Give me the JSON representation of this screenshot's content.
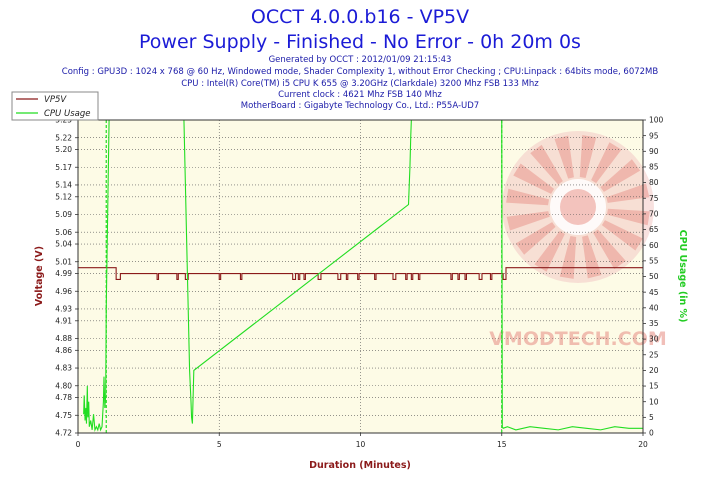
{
  "header": {
    "title_line1": "OCCT 4.0.0.b16 - VP5V",
    "title_line2": "Power Supply - Finished - No Error - 0h 20m 0s",
    "generated": "Generated by OCCT : 2012/01/09 21:15:43",
    "config": "Config : GPU3D : 1024 x 768 @ 60 Hz, Windowed mode, Shader Complexity 1, without Error Checking ; CPU:Linpack : 64bits mode, 6072MB",
    "cpu": "CPU : Intel(R) Core(TM) i5 CPU K 655 @ 3.20GHz (Clarkdale) 3200 Mhz FSB 133 Mhz",
    "clock": "Current clock : 4621 Mhz FSB 140 Mhz",
    "motherboard": "MotherBoard : Gigabyte Technology Co., Ltd.: P55A-UD7"
  },
  "watermark": {
    "text": "VMODTECH.COM"
  },
  "colors": {
    "vp5v": "#8b1a1a",
    "cpu": "#22dd22",
    "plot_bg": "#fdfbe6",
    "grid": "#555555",
    "title": "#1b1bd6"
  },
  "chart_data": {
    "type": "line",
    "xlabel": "Duration (Minutes)",
    "ylabel_left": "Voltage (V)",
    "ylabel_right": "CPU Usage (in %)",
    "xlim": [
      0,
      20
    ],
    "ylim_left": [
      4.72,
      5.25
    ],
    "ylim_right": [
      0,
      100
    ],
    "x_ticks": [
      0,
      5,
      10,
      15,
      20
    ],
    "y_ticks_left": [
      5.25,
      5.22,
      5.2,
      5.17,
      5.14,
      5.12,
      5.09,
      5.06,
      5.04,
      5.01,
      4.99,
      4.96,
      4.93,
      4.91,
      4.88,
      4.86,
      4.83,
      4.8,
      4.78,
      4.75,
      4.72
    ],
    "y_ticks_right": [
      100,
      95,
      90,
      85,
      80,
      75,
      70,
      65,
      60,
      55,
      50,
      45,
      40,
      35,
      30,
      25,
      20,
      15,
      10,
      5,
      0
    ],
    "y_tick_labels_left": [
      "5.25",
      "5.22",
      "5.20",
      "5.17",
      "5.14",
      "5.12",
      "5.09",
      "5.06",
      "5.04",
      "5.01",
      "4.99",
      "4.96",
      "4.93",
      "4.91",
      "4.88",
      "4.86",
      "4.83",
      "4.80",
      "4.78",
      "4.75",
      "4.72"
    ],
    "grid": true,
    "legend_position": "top-left",
    "vertical_markers": [
      1,
      15
    ],
    "series": [
      {
        "name": "VP5V",
        "axis": "left",
        "color": "#8b1a1a",
        "x": [
          0,
          1.35,
          1.35,
          1.5,
          1.5,
          2.8,
          2.8,
          2.85,
          2.85,
          3.5,
          3.5,
          3.55,
          3.55,
          3.8,
          3.8,
          3.9,
          3.9,
          5.0,
          5.0,
          5.05,
          5.05,
          5.75,
          5.75,
          5.8,
          5.8,
          7.6,
          7.6,
          7.7,
          7.7,
          7.8,
          7.8,
          7.85,
          7.85,
          8.0,
          8.0,
          8.05,
          8.05,
          8.5,
          8.5,
          8.6,
          8.6,
          9.2,
          9.2,
          9.3,
          9.3,
          9.5,
          9.5,
          9.55,
          9.55,
          9.9,
          9.9,
          9.95,
          9.95,
          10.5,
          10.5,
          10.55,
          10.55,
          11.15,
          11.15,
          11.25,
          11.25,
          11.6,
          11.6,
          11.65,
          11.65,
          11.8,
          11.8,
          11.85,
          11.85,
          12.05,
          12.05,
          12.1,
          12.1,
          13.2,
          13.2,
          13.25,
          13.25,
          13.45,
          13.45,
          13.5,
          13.5,
          13.7,
          13.7,
          13.75,
          13.75,
          14.2,
          14.2,
          14.3,
          14.3,
          14.6,
          14.6,
          14.65,
          14.65,
          15.05,
          15.05,
          15.15,
          15.15,
          20
        ],
        "values": [
          5.0,
          5.0,
          4.98,
          4.98,
          4.99,
          4.99,
          4.98,
          4.98,
          4.99,
          4.99,
          4.98,
          4.98,
          4.99,
          4.99,
          4.98,
          4.98,
          4.99,
          4.99,
          4.98,
          4.98,
          4.99,
          4.99,
          4.98,
          4.98,
          4.99,
          4.99,
          4.98,
          4.98,
          4.99,
          4.99,
          4.98,
          4.98,
          4.99,
          4.99,
          4.98,
          4.98,
          4.99,
          4.99,
          4.98,
          4.98,
          4.99,
          4.99,
          4.98,
          4.98,
          4.99,
          4.99,
          4.98,
          4.98,
          4.99,
          4.99,
          4.98,
          4.98,
          4.99,
          4.99,
          4.98,
          4.98,
          4.99,
          4.99,
          4.98,
          4.98,
          4.99,
          4.99,
          4.98,
          4.98,
          4.99,
          4.99,
          4.98,
          4.98,
          4.99,
          4.99,
          4.98,
          4.98,
          4.99,
          4.99,
          4.98,
          4.98,
          4.99,
          4.99,
          4.98,
          4.98,
          4.99,
          4.99,
          4.98,
          4.98,
          4.99,
          4.99,
          4.98,
          4.98,
          4.99,
          4.99,
          4.98,
          4.98,
          4.99,
          4.99,
          4.98,
          4.98,
          5.0,
          5.0
        ]
      },
      {
        "name": "CPU Usage",
        "axis": "right",
        "color": "#22dd22",
        "x": [
          0.2,
          0.22,
          0.25,
          0.28,
          0.3,
          0.33,
          0.35,
          0.38,
          0.4,
          0.45,
          0.5,
          0.55,
          0.6,
          0.65,
          0.7,
          0.75,
          0.8,
          0.85,
          0.9,
          0.92,
          0.95,
          0.98,
          1.0,
          1.05,
          1.1,
          3.75,
          3.8,
          3.85,
          3.9,
          3.95,
          4.0,
          4.02,
          4.05,
          4.07,
          4.1,
          11.7,
          11.72,
          11.75,
          11.78,
          11.8,
          15.0,
          15.02,
          15.05,
          15.2,
          15.5,
          16.0,
          16.5,
          17.0,
          17.5,
          18.0,
          18.5,
          19.0,
          19.5,
          20.0
        ],
        "values": [
          6,
          12,
          4,
          8,
          3,
          15,
          5,
          10,
          2,
          4,
          1,
          6,
          1,
          2,
          1,
          3,
          1,
          2,
          10,
          18,
          8,
          12,
          40,
          70,
          100,
          100,
          80,
          60,
          40,
          20,
          10,
          5,
          3,
          10,
          20,
          73,
          78,
          85,
          95,
          100,
          100,
          2,
          1.5,
          2,
          1,
          2,
          1.5,
          1,
          2,
          1.5,
          1,
          2,
          1.5,
          1.5
        ]
      }
    ]
  }
}
